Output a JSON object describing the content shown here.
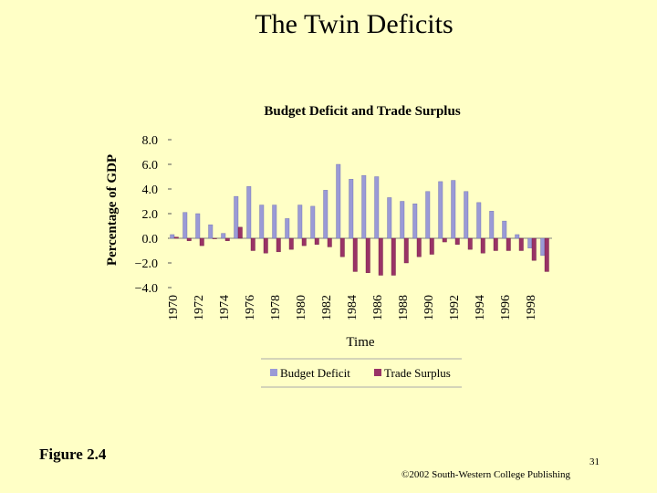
{
  "slide": {
    "title": "The Twin Deficits",
    "figure_label": "Figure 2.4",
    "page_number": "31",
    "copyright": "©2002 South-Western College Publishing"
  },
  "chart_data": {
    "type": "bar",
    "title": "Budget Deficit and Trade Surplus",
    "xlabel": "Time",
    "ylabel": "Percentage of GDP",
    "ylim": [
      -4.0,
      8.0
    ],
    "y_ticks": [
      "8.0",
      "6.0",
      "4.0",
      "2.0",
      "0.0",
      "−2.0",
      "−4.0"
    ],
    "y_tick_values": [
      8,
      6,
      4,
      2,
      0,
      -2,
      -4
    ],
    "categories": [
      "1970",
      "1971",
      "1972",
      "1973",
      "1974",
      "1975",
      "1976",
      "1977",
      "1978",
      "1979",
      "1980",
      "1981",
      "1982",
      "1983",
      "1984",
      "1985",
      "1986",
      "1987",
      "1988",
      "1989",
      "1990",
      "1991",
      "1992",
      "1993",
      "1994",
      "1995",
      "1996",
      "1997",
      "1998",
      "1999"
    ],
    "x_tick_labels": [
      "1970",
      "1972",
      "1974",
      "1976",
      "1978",
      "1980",
      "1982",
      "1984",
      "1986",
      "1988",
      "1990",
      "1992",
      "1994",
      "1996",
      "1998"
    ],
    "series": [
      {
        "name": "Budget Deficit",
        "color": "#9a9ad6",
        "values": [
          0.3,
          2.1,
          2.0,
          1.1,
          0.4,
          3.4,
          4.2,
          2.7,
          2.7,
          1.6,
          2.7,
          2.6,
          3.9,
          6.0,
          4.8,
          5.1,
          5.0,
          3.3,
          3.0,
          2.8,
          3.8,
          4.6,
          4.7,
          3.8,
          2.9,
          2.2,
          1.4,
          0.3,
          -0.8,
          -1.4
        ]
      },
      {
        "name": "Trade Surplus",
        "color": "#993366",
        "values": [
          0.1,
          -0.2,
          -0.6,
          0.0,
          -0.2,
          0.9,
          -1.0,
          -1.2,
          -1.1,
          -0.9,
          -0.6,
          -0.5,
          -0.7,
          -1.5,
          -2.7,
          -2.8,
          -3.0,
          -3.0,
          -2.0,
          -1.5,
          -1.3,
          -0.3,
          -0.5,
          -0.9,
          -1.2,
          -1.0,
          -1.0,
          -1.0,
          -1.8,
          -2.7
        ]
      }
    ],
    "legend": "bottom",
    "grid": false
  }
}
